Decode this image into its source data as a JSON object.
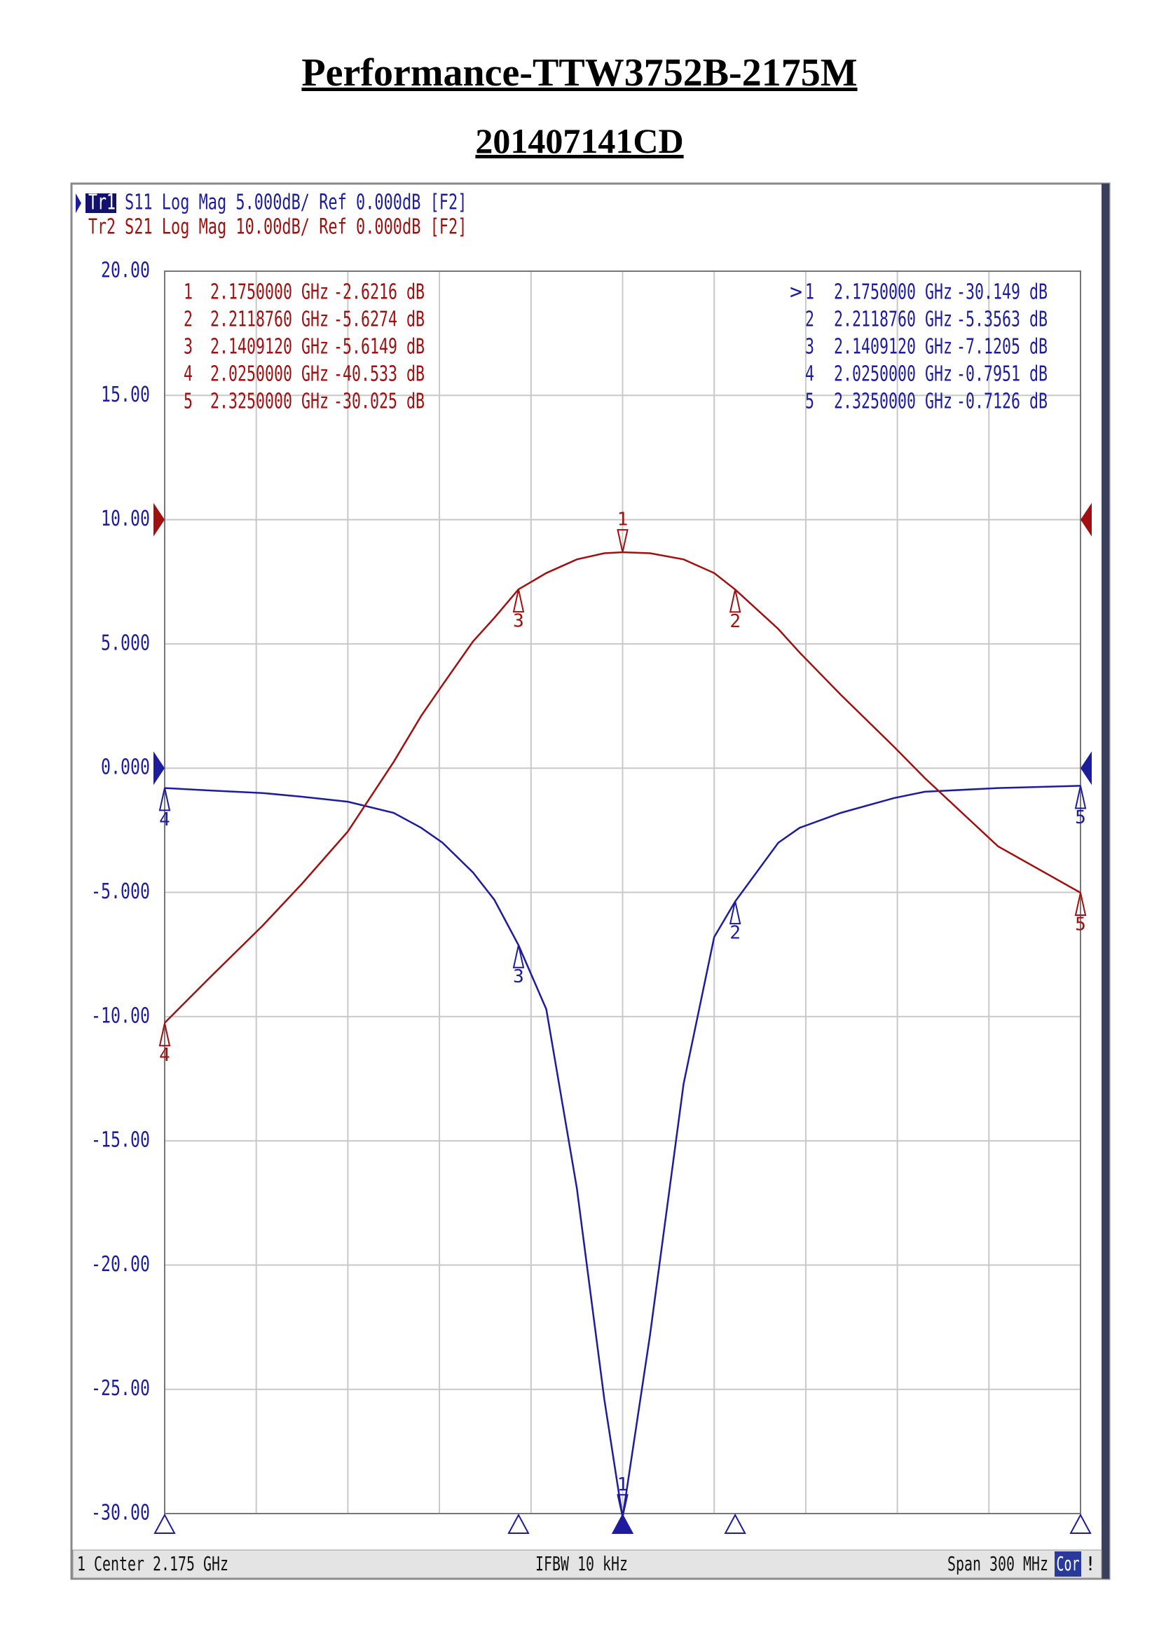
{
  "header": {
    "title": "Performance-TTW3752B-2175M",
    "subtitle": "201407141CD"
  },
  "chart_data": {
    "type": "line",
    "traces": [
      {
        "id": "Tr1",
        "setting": "S11 Log Mag 5.000dB/ Ref 0.000dB [F2]"
      },
      {
        "id": "Tr2",
        "setting": "S21 Log Mag 10.00dB/ Ref 0.000dB [F2]"
      }
    ],
    "xlim": [
      2.025,
      2.325
    ],
    "ylim": [
      -30,
      20
    ],
    "yticks": [
      {
        "value": 20,
        "label": "20.00"
      },
      {
        "value": 15,
        "label": "15.00"
      },
      {
        "value": 10,
        "label": "10.00"
      },
      {
        "value": 5,
        "label": "5.000"
      },
      {
        "value": 0,
        "label": "0.000"
      },
      {
        "value": -5,
        "label": "-5.000"
      },
      {
        "value": -10,
        "label": "-10.00"
      },
      {
        "value": -15,
        "label": "-15.00"
      },
      {
        "value": -20,
        "label": "-20.00"
      },
      {
        "value": -25,
        "label": "-25.00"
      },
      {
        "value": -30,
        "label": "-30.00"
      }
    ],
    "y2lim": [
      -80,
      20
    ],
    "grid": true,
    "x": [
      2.025,
      2.04,
      2.057,
      2.07,
      2.085,
      2.1,
      2.109,
      2.116,
      2.126,
      2.133,
      2.1409,
      2.15,
      2.16,
      2.169,
      2.175,
      2.184,
      2.195,
      2.205,
      2.2119,
      2.226,
      2.233,
      2.2465,
      2.264,
      2.274,
      2.298,
      2.325
    ],
    "series": [
      {
        "name": "S11",
        "color": "#1c1c9c",
        "values": [
          -0.8,
          -0.9,
          -1.0,
          -1.15,
          -1.35,
          -1.8,
          -2.4,
          -3.0,
          -4.2,
          -5.3,
          -7.12,
          -9.7,
          -16.9,
          -25.4,
          -30.15,
          -22.8,
          -12.7,
          -6.8,
          -5.36,
          -3.0,
          -2.4,
          -1.8,
          -1.2,
          -0.95,
          -0.8,
          -0.71
        ],
        "active_prefix": ">",
        "markers": [
          {
            "num": "1",
            "freq": 2.175,
            "freq_label": "2.1750000 GHz",
            "value": -30.149,
            "value_label": "-30.149 dB"
          },
          {
            "num": "2",
            "freq": 2.211876,
            "freq_label": "2.2118760 GHz",
            "value": -5.3563,
            "value_label": "-5.3563 dB"
          },
          {
            "num": "3",
            "freq": 2.140912,
            "freq_label": "2.1409120 GHz",
            "value": -7.1205,
            "value_label": "-7.1205 dB"
          },
          {
            "num": "4",
            "freq": 2.025,
            "freq_label": "2.0250000 GHz",
            "value": -0.7951,
            "value_label": "-0.7951 dB"
          },
          {
            "num": "5",
            "freq": 2.325,
            "freq_label": "2.3250000 GHz",
            "value": -0.7126,
            "value_label": "-0.7126 dB"
          }
        ]
      },
      {
        "name": "S21",
        "color": "#a01010",
        "axis": "y2",
        "values": [
          -40.5,
          -36.8,
          -32.7,
          -29.3,
          -25.1,
          -19.5,
          -15.8,
          -13.3,
          -9.8,
          -7.9,
          -5.61,
          -4.3,
          -3.2,
          -2.7,
          -2.62,
          -2.7,
          -3.2,
          -4.3,
          -5.63,
          -8.8,
          -10.7,
          -14.1,
          -18.3,
          -20.8,
          -26.3,
          -30.03
        ],
        "markers": [
          {
            "num": "1",
            "freq": 2.175,
            "freq_label": "2.1750000 GHz",
            "value": -2.6216,
            "value_label": "-2.6216 dB"
          },
          {
            "num": "2",
            "freq": 2.211876,
            "freq_label": "2.2118760 GHz",
            "value": -5.6274,
            "value_label": "-5.6274 dB"
          },
          {
            "num": "3",
            "freq": 2.140912,
            "freq_label": "2.1409120 GHz",
            "value": -5.6149,
            "value_label": "-5.6149 dB"
          },
          {
            "num": "4",
            "freq": 2.025,
            "freq_label": "2.0250000 GHz",
            "value": -40.533,
            "value_label": "-40.533 dB"
          },
          {
            "num": "5",
            "freq": 2.325,
            "freq_label": "2.3250000 GHz",
            "value": -30.025,
            "value_label": "-30.025 dB"
          }
        ]
      }
    ],
    "status": {
      "channel": "1",
      "center": "Center 2.175 GHz",
      "ifbw": "IFBW 10 kHz",
      "span": "Span 300 MHz",
      "cor": "Cor",
      "flag": "!"
    }
  }
}
